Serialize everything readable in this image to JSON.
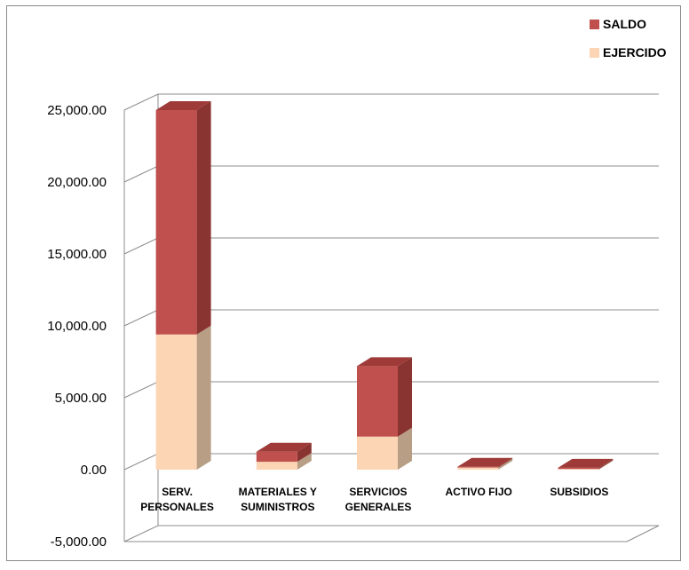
{
  "chart_data": {
    "type": "bar",
    "stacked": true,
    "three_d": true,
    "title": "",
    "xlabel": "",
    "ylabel": "",
    "ylim": [
      -5000,
      25000
    ],
    "yticks": [
      -5000,
      0,
      5000,
      10000,
      15000,
      20000,
      25000
    ],
    "ytick_labels": [
      "-5,000.00",
      "0.00",
      "5,000.00",
      "10,000.00",
      "15,000.00",
      "20,000.00",
      "25,000.00"
    ],
    "grid": true,
    "legend_position": "top-right",
    "categories": [
      [
        "SERV.",
        "PERSONALES"
      ],
      [
        "MATERIALES Y",
        "SUMINISTROS"
      ],
      [
        "SERVICIOS",
        "GENERALES"
      ],
      [
        "ACTIVO FIJO"
      ],
      [
        "SUBSIDIOS"
      ]
    ],
    "series": [
      {
        "name": "EJERCIDO",
        "values": [
          9400,
          550,
          2300,
          150,
          50
        ],
        "color": "#fcd5b5",
        "side_color": "#b79e85",
        "top_color": "#d8b89c"
      },
      {
        "name": "SALDO",
        "values": [
          15600,
          700,
          4900,
          50,
          80
        ],
        "color": "#c0504d",
        "side_color": "#8a3432",
        "top_color": "#9e3b38"
      }
    ],
    "legend_order": [
      "SALDO",
      "EJERCIDO"
    ]
  }
}
